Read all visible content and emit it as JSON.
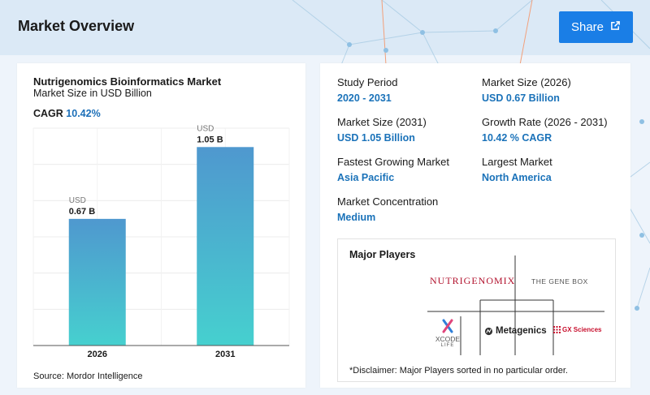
{
  "header": {
    "title": "Market Overview",
    "share_label": "Share",
    "share_icon": "external-link-icon"
  },
  "chart_data": {
    "type": "bar",
    "title": "Nutrigenomics Bioinformatics Market",
    "subtitle": "Market Size in USD Billion",
    "cagr_label": "CAGR",
    "cagr_value": "10.42%",
    "categories": [
      "2026",
      "2031"
    ],
    "values": [
      0.67,
      1.05
    ],
    "value_labels": [
      {
        "unit": "USD",
        "value": "0.67 B"
      },
      {
        "unit": "USD",
        "value": "1.05 B"
      }
    ],
    "ylim": [
      0,
      1.15
    ],
    "grid": true,
    "colors": {
      "bar_top": "#4f98cf",
      "bar_bottom": "#46d0cf"
    },
    "source": "Source: Mordor Intelligence"
  },
  "stats": [
    {
      "label": "Study Period",
      "value": "2020 - 2031"
    },
    {
      "label": "Market Size (2026)",
      "value": "USD 0.67 Billion"
    },
    {
      "label": "Market Size (2031)",
      "value": "USD 1.05 Billion"
    },
    {
      "label": "Growth Rate (2026 - 2031)",
      "value": "10.42 % CAGR"
    },
    {
      "label": "Fastest Growing Market",
      "value": "Asia Pacific"
    },
    {
      "label": "Largest Market",
      "value": "North America"
    },
    {
      "label": "Market Concentration",
      "value": "Medium"
    }
  ],
  "players": {
    "title": "Major Players",
    "logos": {
      "nutrigenomix": "NUTRIGENOMIX",
      "genebox": "THE GENE BOX",
      "xcode": "XCODE",
      "xcode_sub": "LIFE",
      "metagenics": "Metagenics",
      "gx": "GX Sciences"
    },
    "disclaimer": "*Disclaimer: Major Players sorted in no particular order."
  },
  "colors": {
    "accent": "#1a7ee6",
    "value_blue": "#1a72b9"
  }
}
